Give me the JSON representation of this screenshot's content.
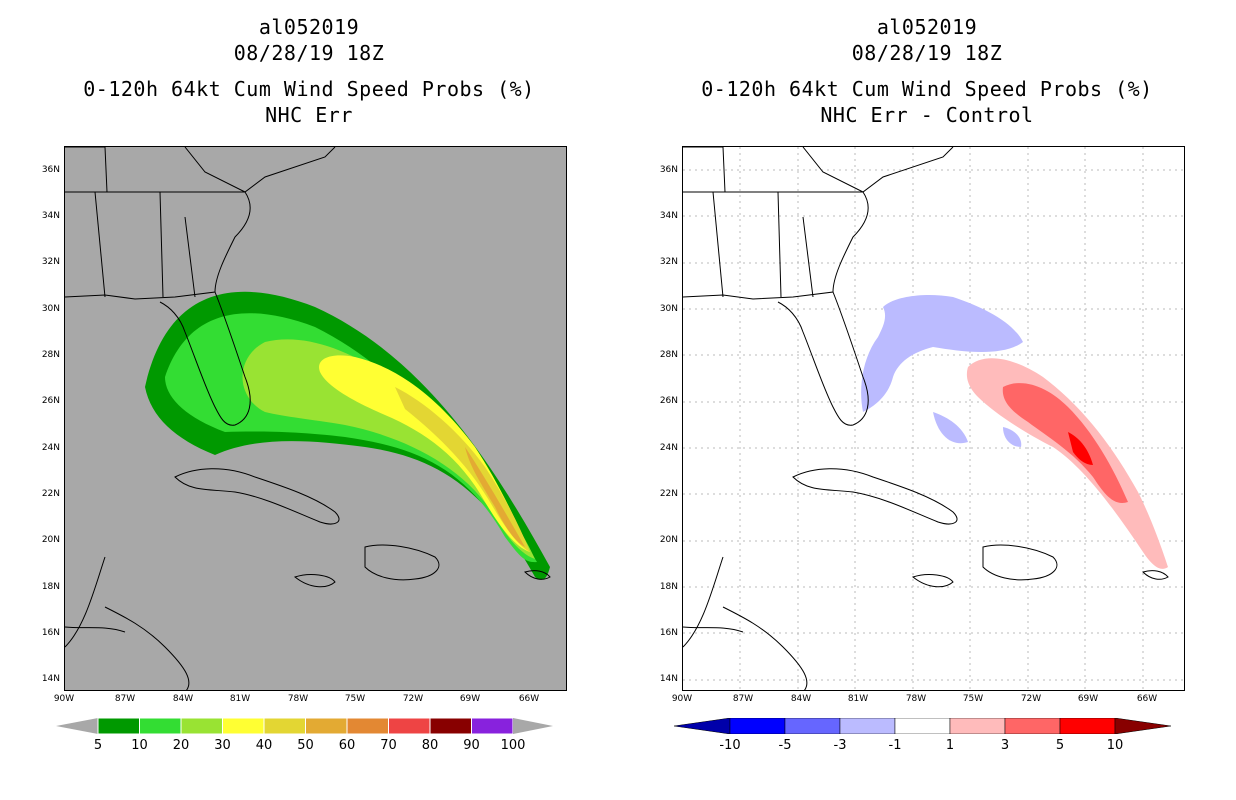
{
  "left": {
    "title_line1": "al052019",
    "title_line2": "08/28/19 18Z",
    "title_line3": "0-120h 64kt Cum Wind Speed Probs (%)",
    "title_line4": "NHC Err",
    "colorbar_labels": [
      "5",
      "10",
      "20",
      "30",
      "40",
      "50",
      "60",
      "70",
      "80",
      "90",
      "100"
    ],
    "colorbar_colors": [
      "#009900",
      "#33dd33",
      "#99e333",
      "#ffff33",
      "#e3d633",
      "#e3aa33",
      "#e38833",
      "#ee4444",
      "#880000",
      "#8822dd"
    ]
  },
  "right": {
    "title_line1": "al052019",
    "title_line2": "08/28/19 18Z",
    "title_line3": "0-120h 64kt Cum Wind Speed Probs (%)",
    "title_line4": "NHC Err - Control",
    "colorbar_labels": [
      "-10",
      "-5",
      "-3",
      "-1",
      "1",
      "3",
      "5",
      "10"
    ],
    "colorbar_colors": [
      "#0000aa",
      "#0000ff",
      "#6666ff",
      "#bbbbff",
      "#ffffff",
      "#ffbbbb",
      "#ff6666",
      "#ff0000",
      "#880000"
    ]
  },
  "axes": {
    "lat_labels": [
      "36N",
      "34N",
      "32N",
      "30N",
      "28N",
      "26N",
      "24N",
      "22N",
      "20N",
      "18N",
      "16N",
      "14N"
    ],
    "lon_labels": [
      "90W",
      "87W",
      "84W",
      "81W",
      "78W",
      "75W",
      "72W",
      "69W",
      "66W"
    ]
  },
  "colors": {
    "map_bg_left": "#a8a8a8",
    "map_bg_right": "#ffffff"
  }
}
